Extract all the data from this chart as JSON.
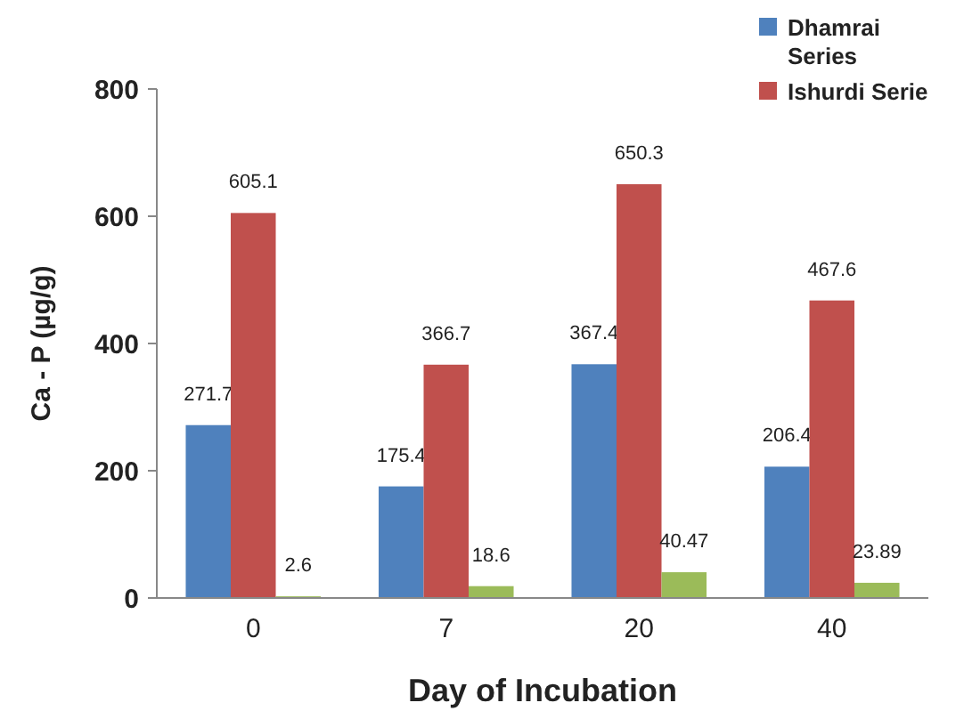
{
  "chart_data": {
    "type": "bar",
    "xlabel": "Day of Incubation",
    "ylabel": "Ca - P (µg/g)",
    "categories": [
      "0",
      "7",
      "20",
      "40"
    ],
    "series": [
      {
        "name": "Dhamrai Series",
        "color": "#4f81bd",
        "values": [
          271.7,
          175.4,
          367.4,
          206.4
        ]
      },
      {
        "name": "Ishurdi Serie",
        "color": "#c0504d",
        "values": [
          605.1,
          366.7,
          650.3,
          467.6
        ]
      },
      {
        "color": "#9bbb59",
        "values": [
          2.6,
          18.6,
          40.47,
          23.89
        ]
      }
    ],
    "ylim": [
      0,
      800
    ],
    "yticks": [
      0,
      200,
      400,
      600,
      800
    ],
    "data_labels": true,
    "legend": "top right",
    "grid": false
  }
}
